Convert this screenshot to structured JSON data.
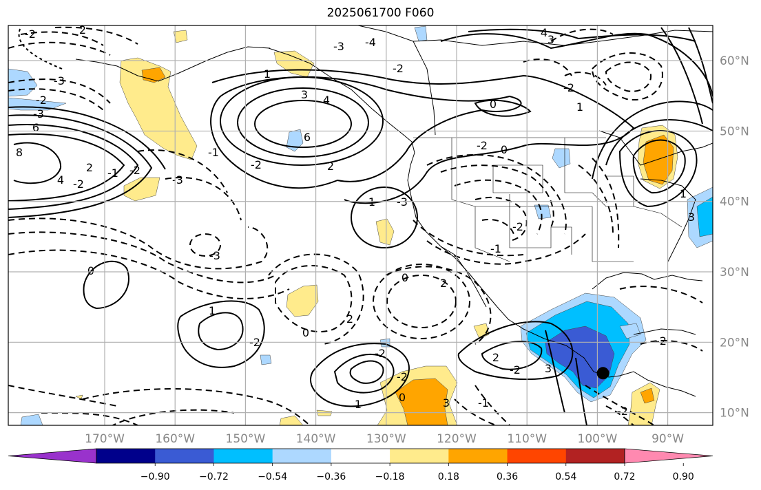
{
  "title": "2025061700 F060",
  "map": {
    "lon_ticks": [
      {
        "lon": -170,
        "label": "170°W"
      },
      {
        "lon": -160,
        "label": "160°W"
      },
      {
        "lon": -150,
        "label": "150°W"
      },
      {
        "lon": -140,
        "label": "140°W"
      },
      {
        "lon": -130,
        "label": "130°W"
      },
      {
        "lon": -120,
        "label": "120°W"
      },
      {
        "lon": -110,
        "label": "110°W"
      },
      {
        "lon": -100,
        "label": "100°W"
      },
      {
        "lon": -90,
        "label": "90°W"
      }
    ],
    "lat_ticks": [
      {
        "lat": 60,
        "label": "60°N"
      },
      {
        "lat": 50,
        "label": "50°N"
      },
      {
        "lat": 40,
        "label": "40°N"
      },
      {
        "lat": 30,
        "label": "30°N"
      },
      {
        "lat": 20,
        "label": "20°N"
      },
      {
        "lat": 10,
        "label": "10°N"
      }
    ],
    "contour_labels": [
      "-2",
      "2",
      "4",
      "-3",
      "3",
      "-4",
      "-2",
      "-3",
      "-2",
      "-3",
      "6",
      "8",
      "2",
      "4",
      "-2",
      "-1",
      "-2",
      "1",
      "3",
      "4",
      "6",
      "2",
      "-2",
      "-1",
      "-3",
      "1",
      "-3",
      "0",
      "1",
      "-2",
      "0",
      "2",
      "0",
      "-2",
      "-2",
      "2",
      "-1",
      "-2",
      "-3",
      "1",
      "0",
      "3",
      "-2",
      "2",
      "3",
      "-1",
      "-2",
      "1",
      "0",
      "-2",
      "0",
      "1",
      "-2",
      "-2",
      "3"
    ],
    "marker": {
      "name": "storm-center",
      "lon": -99.2,
      "lat": 15.6
    }
  },
  "colorbar": {
    "colors": [
      "#9932cc",
      "#00008b",
      "#3a5bd4",
      "#00bfff",
      "#add8ff",
      "#ffffff",
      "#ffeb8c",
      "#ffa500",
      "#ff4500",
      "#b22222",
      "#ff89b0"
    ],
    "tick_labels": [
      "−0.90",
      "−0.72",
      "−0.54",
      "−0.36",
      "−0.18",
      "0.18",
      "0.36",
      "0.54",
      "0.72",
      "0.90"
    ]
  }
}
